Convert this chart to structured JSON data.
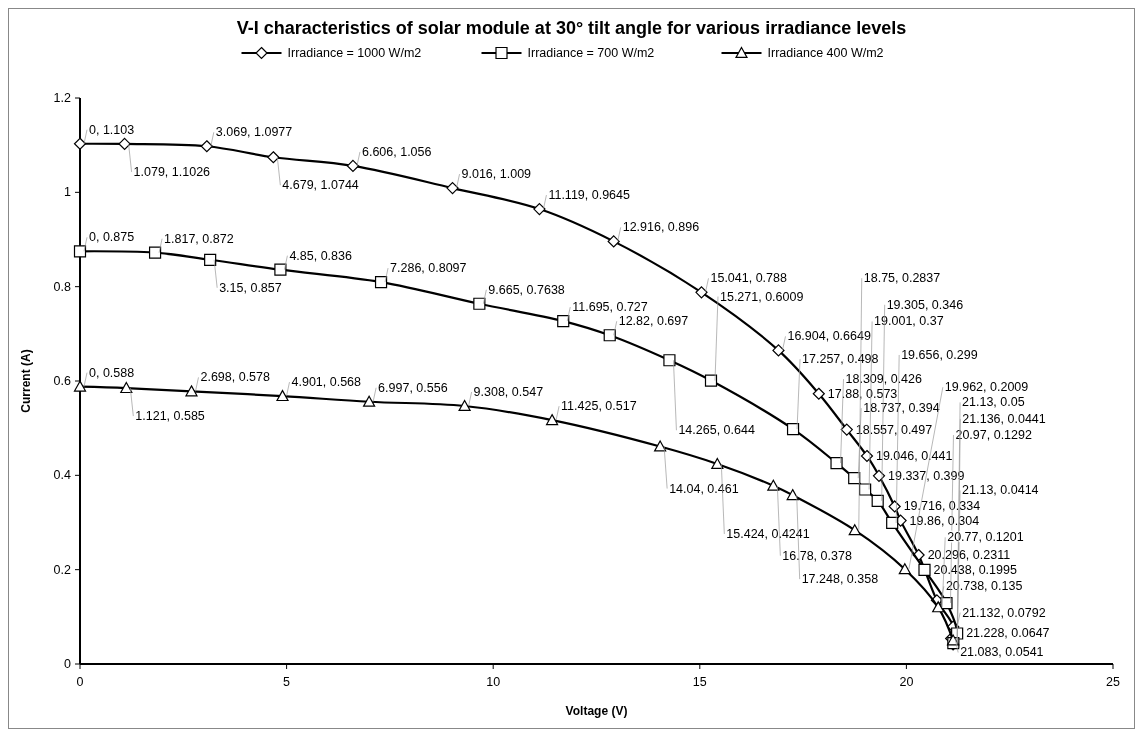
{
  "chart_data": {
    "type": "line",
    "title": "V-I characteristics of solar module at 30° tilt angle for various irradiance levels",
    "xlabel": "Voltage (V)",
    "ylabel": "Current (A)",
    "xlim": [
      0,
      25
    ],
    "xticks": [
      0,
      5,
      10,
      15,
      20,
      25
    ],
    "ylim": [
      0,
      1.2
    ],
    "yticks": [
      0,
      0.2,
      0.4,
      0.6,
      0.8,
      1,
      1.2
    ],
    "legend": "top",
    "grid": false,
    "line_style": "solid",
    "series": [
      {
        "name": "Irradiance = 1000 W/m2",
        "color": "#000000",
        "marker": "diamond",
        "x": [
          0,
          1.079,
          3.069,
          4.679,
          6.606,
          9.016,
          11.119,
          12.916,
          15.041,
          16.904,
          17.88,
          18.557,
          19.046,
          19.337,
          19.716,
          19.86,
          20.296,
          20.738,
          21.132,
          21.083,
          21.13
        ],
        "values": [
          1.103,
          1.1026,
          1.0977,
          1.0744,
          1.056,
          1.009,
          0.9645,
          0.896,
          0.788,
          0.6649,
          0.573,
          0.497,
          0.441,
          0.399,
          0.334,
          0.304,
          0.2311,
          0.135,
          0.0792,
          0.0541,
          0.0414
        ],
        "value_labels": [
          "0, 1.103",
          "1.079, 1.1026",
          "3.069, 1.0977",
          "4.679, 1.0744",
          "6.606, 1.056",
          "9.016, 1.009",
          "11.119, 0.9645",
          "12.916, 0.896",
          "15.041, 0.788",
          "16.904, 0.6649",
          "17.88, 0.573",
          "18.557, 0.497",
          "19.046, 0.441",
          "19.337, 0.399",
          "19.716, 0.334",
          "19.86, 0.304",
          "20.296, 0.2311",
          "20.738, 0.135",
          "21.132, 0.0792",
          "21.083, 0.0541",
          "21.13, 0.0414"
        ]
      },
      {
        "name": "Irradiance = 700 W/m2",
        "color": "#000000",
        "marker": "square",
        "x": [
          0,
          1.817,
          3.15,
          4.85,
          7.286,
          9.665,
          11.695,
          12.82,
          14.265,
          15.271,
          17.257,
          18.309,
          18.737,
          19.001,
          19.305,
          19.656,
          20.438,
          20.97,
          21.228,
          21.136
        ],
        "values": [
          0.875,
          0.872,
          0.857,
          0.836,
          0.8097,
          0.7638,
          0.727,
          0.697,
          0.644,
          0.6009,
          0.498,
          0.426,
          0.394,
          0.37,
          0.346,
          0.299,
          0.1995,
          0.1292,
          0.0647,
          0.0441
        ],
        "value_labels": [
          "0, 0.875",
          "1.817, 0.872",
          "3.15, 0.857",
          "4.85, 0.836",
          "7.286, 0.8097",
          "9.665, 0.7638",
          "11.695, 0.727",
          "12.82, 0.697",
          "14.265, 0.644",
          "15.271, 0.6009",
          "17.257, 0.498",
          "18.309, 0.426",
          "18.737, 0.394",
          "19.001, 0.37",
          "19.305, 0.346",
          "19.656, 0.299",
          "20.438, 0.1995",
          "20.97, 0.1292",
          "21.228, 0.0647",
          "21.136, 0.0441"
        ]
      },
      {
        "name": "Irradiance 400 W/m2",
        "color": "#000000",
        "marker": "triangle",
        "x": [
          0,
          1.121,
          2.698,
          4.901,
          6.997,
          9.308,
          11.425,
          14.04,
          15.424,
          16.78,
          17.248,
          18.75,
          19.962,
          20.77,
          21.13
        ],
        "values": [
          0.588,
          0.585,
          0.578,
          0.568,
          0.556,
          0.547,
          0.517,
          0.461,
          0.4241,
          0.378,
          0.358,
          0.2837,
          0.2009,
          0.1201,
          0.05
        ],
        "value_labels": [
          "0, 0.588",
          "1.121, 0.585",
          "2.698, 0.578",
          "4.901, 0.568",
          "6.997, 0.556",
          "9.308, 0.547",
          "11.425, 0.517",
          "14.04, 0.461",
          "15.424, 0.4241",
          "16.78, 0.378",
          "17.248, 0.358",
          "18.75, 0.2837",
          "19.962, 0.2009",
          "20.77, 0.1201",
          "21.13, 0.05"
        ]
      }
    ]
  }
}
